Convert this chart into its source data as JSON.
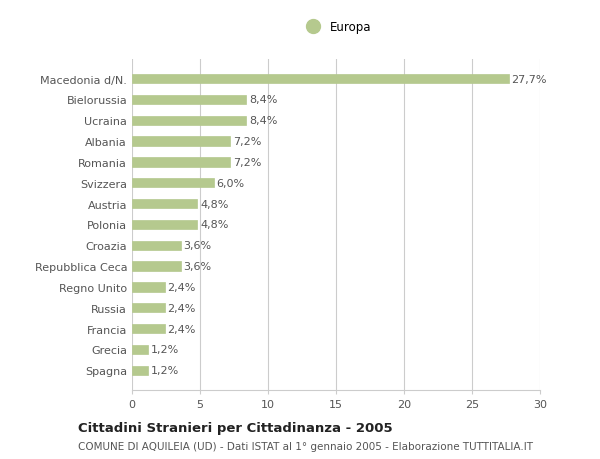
{
  "categories": [
    "Spagna",
    "Grecia",
    "Francia",
    "Russia",
    "Regno Unito",
    "Repubblica Ceca",
    "Croazia",
    "Polonia",
    "Austria",
    "Svizzera",
    "Romania",
    "Albania",
    "Ucraina",
    "Bielorussia",
    "Macedonia d/N."
  ],
  "values": [
    1.2,
    1.2,
    2.4,
    2.4,
    2.4,
    3.6,
    3.6,
    4.8,
    4.8,
    6.0,
    7.2,
    7.2,
    8.4,
    8.4,
    27.7
  ],
  "labels": [
    "1,2%",
    "1,2%",
    "2,4%",
    "2,4%",
    "2,4%",
    "3,6%",
    "3,6%",
    "4,8%",
    "4,8%",
    "6,0%",
    "7,2%",
    "7,2%",
    "8,4%",
    "8,4%",
    "27,7%"
  ],
  "bar_color": "#b5c98e",
  "bar_edge_color": "#b5c98e",
  "legend_label": "Europa",
  "legend_color": "#b5c98e",
  "title_line1": "Cittadini Stranieri per Cittadinanza - 2005",
  "title_line2": "COMUNE DI AQUILEIA (UD) - Dati ISTAT al 1° gennaio 2005 - Elaborazione TUTTITALIA.IT",
  "xlim": [
    0,
    30
  ],
  "xticks": [
    0,
    5,
    10,
    15,
    20,
    25,
    30
  ],
  "background_color": "#ffffff",
  "grid_color": "#cccccc",
  "text_color": "#555555",
  "label_fontsize": 8,
  "tick_fontsize": 8,
  "title1_fontsize": 9.5,
  "title2_fontsize": 7.5,
  "bar_height": 0.45
}
